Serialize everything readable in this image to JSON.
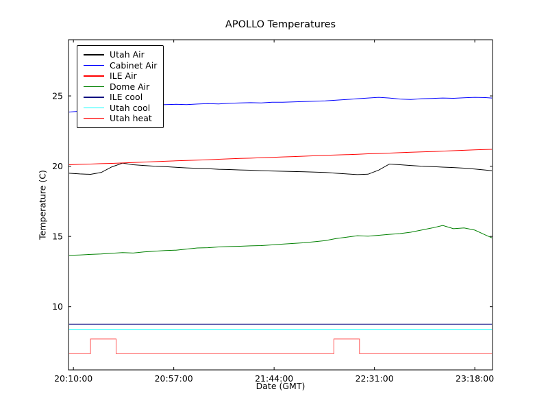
{
  "chart_data": {
    "type": "line",
    "title": "APOLLO Temperatures",
    "xlabel": "Date (GMT)",
    "ylabel": "Temperature (C)",
    "x_unit": "minutes after 20:00:00 GMT",
    "xlim": [
      7.7,
      206.3
    ],
    "ylim": [
      5.5,
      29.0
    ],
    "yticks": [
      10,
      15,
      20,
      25
    ],
    "xticks": [
      {
        "value": 10,
        "label": "20:10:00"
      },
      {
        "value": 57,
        "label": "20:57:00"
      },
      {
        "value": 104,
        "label": "21:44:00"
      },
      {
        "value": 151,
        "label": "22:31:00"
      },
      {
        "value": 198,
        "label": "23:18:00"
      }
    ],
    "grid": false,
    "legend_position": "upper left",
    "series": [
      {
        "name": "Utah Air",
        "color": "#000000",
        "x": [
          8,
          13,
          18,
          23,
          28,
          33,
          38,
          43,
          48,
          53,
          58,
          63,
          68,
          73,
          78,
          83,
          88,
          93,
          98,
          103,
          108,
          113,
          118,
          123,
          128,
          133,
          138,
          143,
          148,
          153,
          158,
          163,
          168,
          173,
          178,
          183,
          188,
          193,
          198,
          203,
          206
        ],
        "y": [
          19.5,
          19.45,
          19.42,
          19.55,
          19.95,
          20.22,
          20.1,
          20.05,
          20.0,
          19.97,
          19.92,
          19.88,
          19.85,
          19.82,
          19.78,
          19.76,
          19.73,
          19.71,
          19.68,
          19.66,
          19.64,
          19.62,
          19.6,
          19.58,
          19.55,
          19.5,
          19.45,
          19.4,
          19.43,
          19.72,
          20.15,
          20.1,
          20.05,
          20.0,
          19.97,
          19.93,
          19.9,
          19.86,
          19.8,
          19.72,
          19.68
        ]
      },
      {
        "name": "Cabinet Air",
        "color": "#0000ff",
        "x": [
          8,
          13,
          18,
          23,
          28,
          33,
          38,
          43,
          48,
          53,
          58,
          63,
          68,
          73,
          78,
          83,
          88,
          93,
          98,
          103,
          108,
          113,
          118,
          123,
          128,
          133,
          138,
          143,
          148,
          153,
          158,
          163,
          168,
          173,
          178,
          183,
          188,
          193,
          198,
          203,
          206
        ],
        "y": [
          23.85,
          23.92,
          24.05,
          24.15,
          24.22,
          24.28,
          24.32,
          24.35,
          24.35,
          24.38,
          24.4,
          24.38,
          24.42,
          24.45,
          24.43,
          24.48,
          24.5,
          24.52,
          24.5,
          24.55,
          24.55,
          24.58,
          24.6,
          24.62,
          24.65,
          24.7,
          24.75,
          24.8,
          24.85,
          24.9,
          24.85,
          24.78,
          24.75,
          24.8,
          24.82,
          24.85,
          24.83,
          24.87,
          24.9,
          24.88,
          24.85
        ]
      },
      {
        "name": "ILE Air",
        "color": "#ff0000",
        "x": [
          8,
          13,
          18,
          23,
          28,
          33,
          38,
          43,
          48,
          53,
          58,
          63,
          68,
          73,
          78,
          83,
          88,
          93,
          98,
          103,
          108,
          113,
          118,
          123,
          128,
          133,
          138,
          143,
          148,
          153,
          158,
          163,
          168,
          173,
          178,
          183,
          188,
          193,
          198,
          203,
          206
        ],
        "y": [
          20.1,
          20.13,
          20.15,
          20.18,
          20.2,
          20.23,
          20.26,
          20.29,
          20.32,
          20.35,
          20.38,
          20.41,
          20.43,
          20.46,
          20.49,
          20.52,
          20.55,
          20.57,
          20.6,
          20.63,
          20.66,
          20.68,
          20.71,
          20.74,
          20.77,
          20.8,
          20.82,
          20.85,
          20.88,
          20.9,
          20.93,
          20.96,
          20.99,
          21.02,
          21.04,
          21.07,
          21.1,
          21.13,
          21.16,
          21.19,
          21.2
        ]
      },
      {
        "name": "Dome Air",
        "color": "#008000",
        "x": [
          8,
          13,
          18,
          23,
          28,
          33,
          38,
          43,
          48,
          53,
          58,
          63,
          68,
          73,
          78,
          83,
          88,
          93,
          98,
          103,
          108,
          113,
          118,
          123,
          128,
          133,
          138,
          143,
          148,
          153,
          158,
          163,
          168,
          173,
          178,
          183,
          188,
          193,
          198,
          203,
          206
        ],
        "y": [
          13.65,
          13.68,
          13.72,
          13.75,
          13.8,
          13.85,
          13.82,
          13.9,
          13.95,
          14.0,
          14.02,
          14.1,
          14.18,
          14.2,
          14.25,
          14.28,
          14.3,
          14.33,
          14.35,
          14.4,
          14.45,
          14.5,
          14.55,
          14.62,
          14.7,
          14.85,
          14.95,
          15.05,
          15.02,
          15.08,
          15.15,
          15.2,
          15.3,
          15.45,
          15.6,
          15.78,
          15.55,
          15.6,
          15.45,
          15.1,
          14.9
        ]
      },
      {
        "name": "ILE cool",
        "color": "#000080",
        "x": [
          8,
          206
        ],
        "y": [
          8.75,
          8.75
        ]
      },
      {
        "name": "Utah cool",
        "color": "#00ffff",
        "x": [
          8,
          206
        ],
        "y": [
          8.35,
          8.35
        ]
      },
      {
        "name": "Utah heat",
        "color": "#ff5555",
        "x": [
          8,
          18,
          18,
          30,
          30,
          132,
          132,
          144,
          144,
          206
        ],
        "y": [
          6.65,
          6.65,
          7.7,
          7.7,
          6.65,
          6.65,
          7.7,
          7.7,
          6.65,
          6.65
        ]
      }
    ]
  }
}
